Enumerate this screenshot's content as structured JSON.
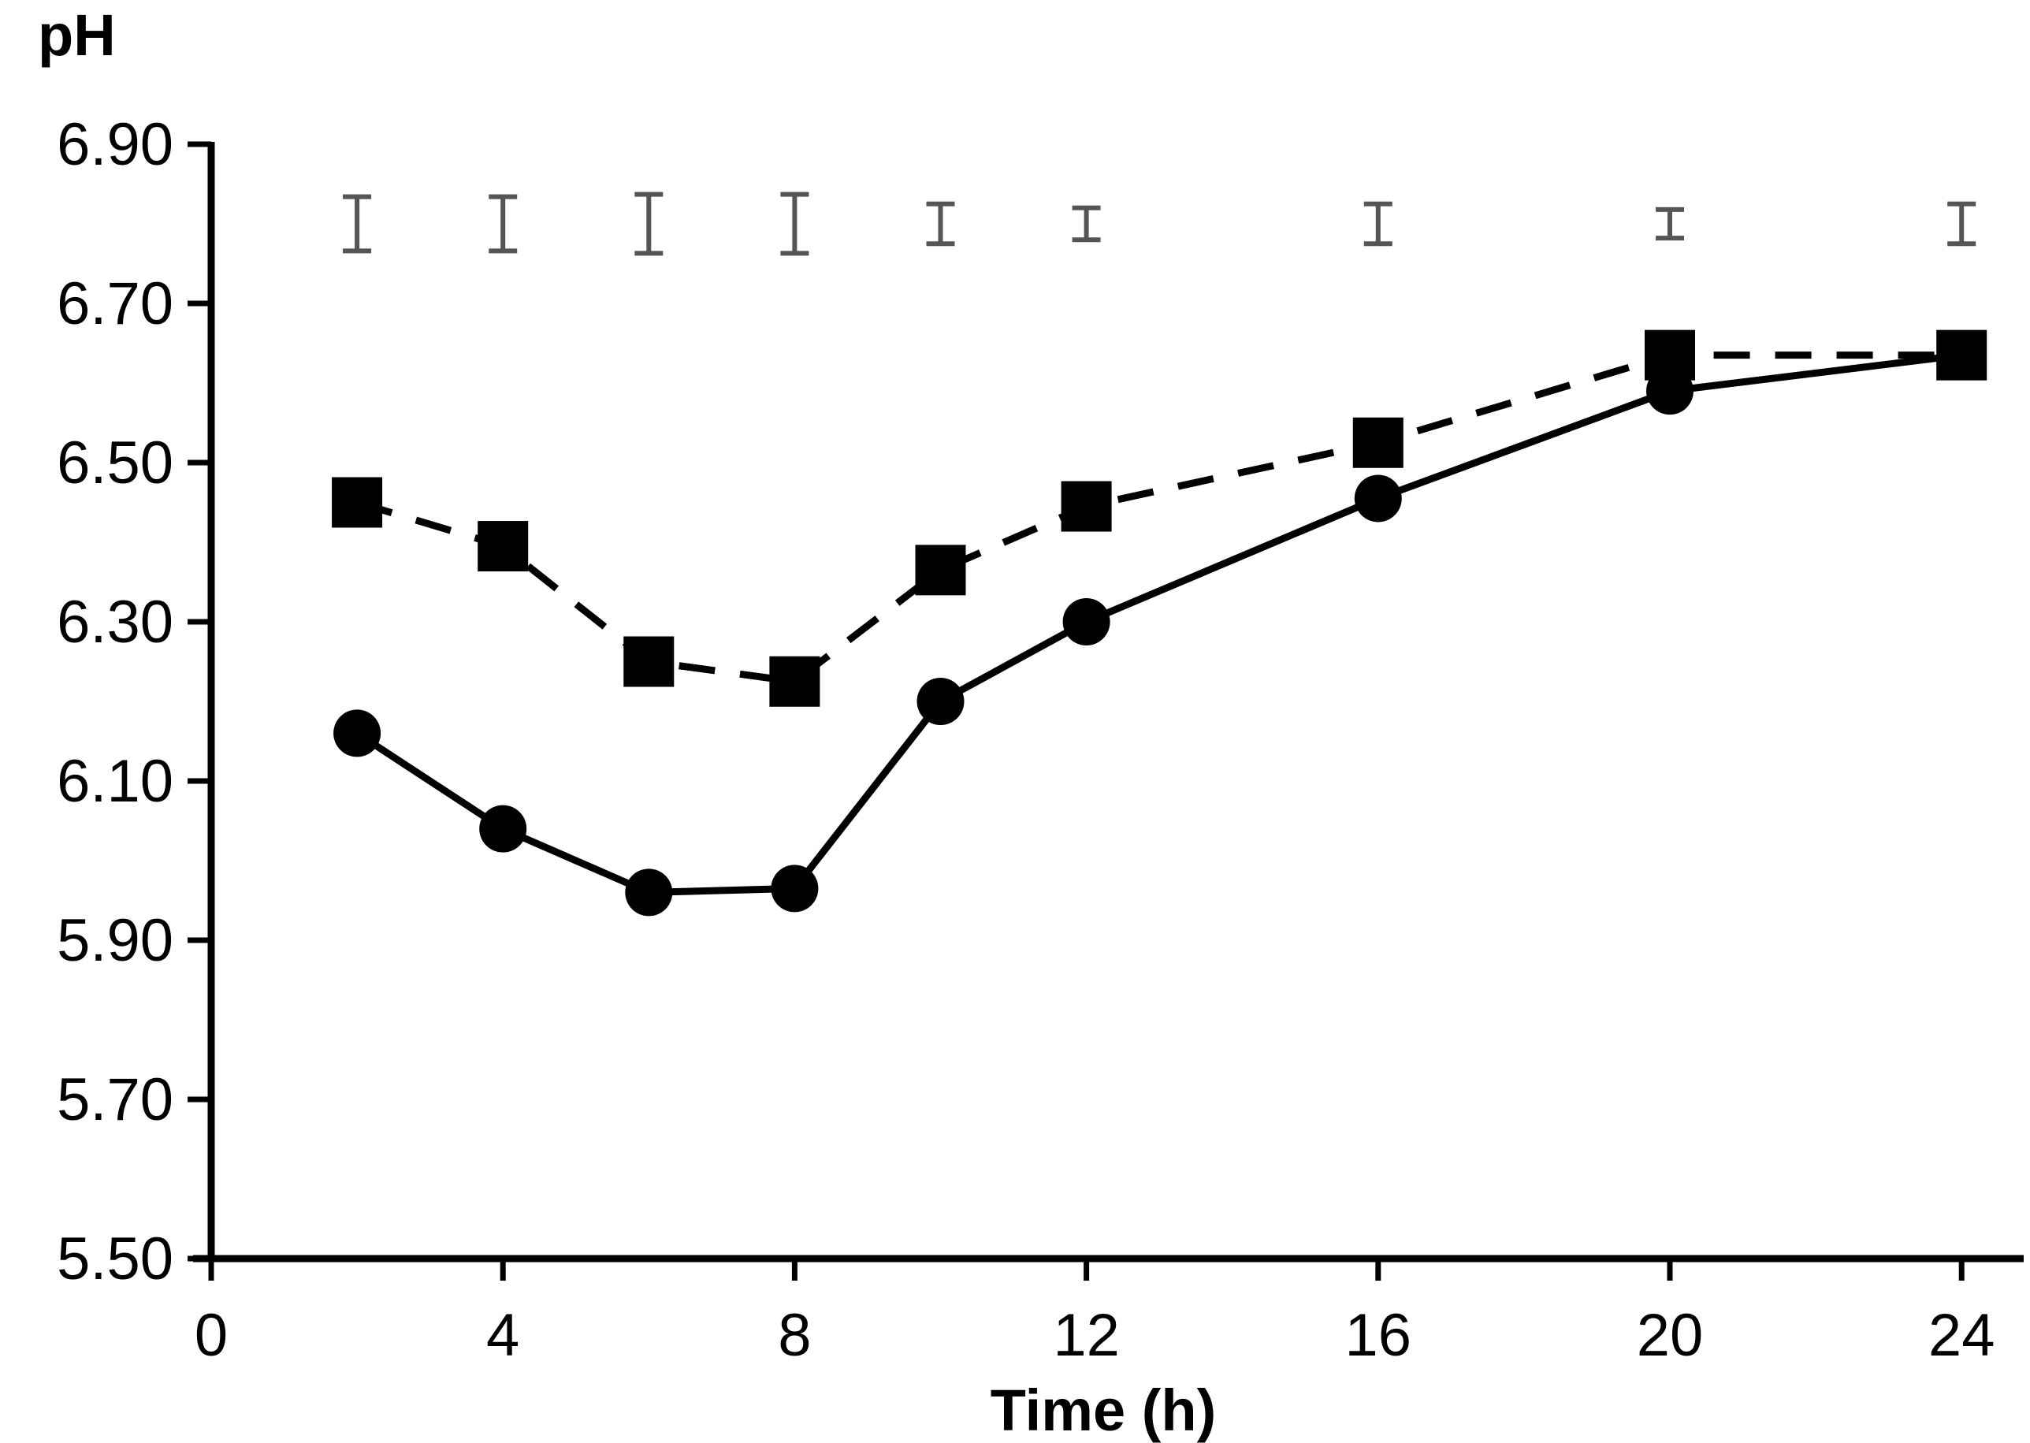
{
  "chart_data": {
    "type": "line",
    "title": "",
    "xlabel": "Time (h)",
    "ylabel": "pH",
    "x_ticks": [
      "0",
      "4",
      "8",
      "12",
      "16",
      "20",
      "24"
    ],
    "x_tick_values": [
      0,
      4,
      8,
      12,
      16,
      20,
      24
    ],
    "y_ticks": [
      "5.50",
      "5.70",
      "5.90",
      "6.10",
      "6.30",
      "6.50",
      "6.70",
      "6.90"
    ],
    "y_tick_values": [
      5.5,
      5.7,
      5.9,
      6.1,
      6.3,
      6.5,
      6.7,
      6.9
    ],
    "xlim": [
      0,
      25
    ],
    "ylim": [
      5.5,
      6.9
    ],
    "grid": false,
    "x": [
      2,
      4,
      6,
      8,
      10,
      12,
      16,
      20,
      24
    ],
    "series": [
      {
        "name": "circles (solid line)",
        "marker": "circle",
        "line": "solid",
        "values": [
          6.16,
          6.04,
          5.96,
          5.965,
          6.2,
          6.3,
          6.455,
          6.59,
          6.635
        ]
      },
      {
        "name": "squares (dashed line)",
        "marker": "square",
        "line": "dashed",
        "values": [
          6.45,
          6.395,
          6.25,
          6.225,
          6.365,
          6.445,
          6.525,
          6.635,
          6.635
        ]
      }
    ],
    "error_bars": {
      "center": 6.8,
      "half_ranges": [
        0.034,
        0.034,
        0.037,
        0.037,
        0.025,
        0.02,
        0.025,
        0.018,
        0.025
      ]
    },
    "colors": {
      "series": "#000000",
      "error_bars": "#555555"
    }
  }
}
